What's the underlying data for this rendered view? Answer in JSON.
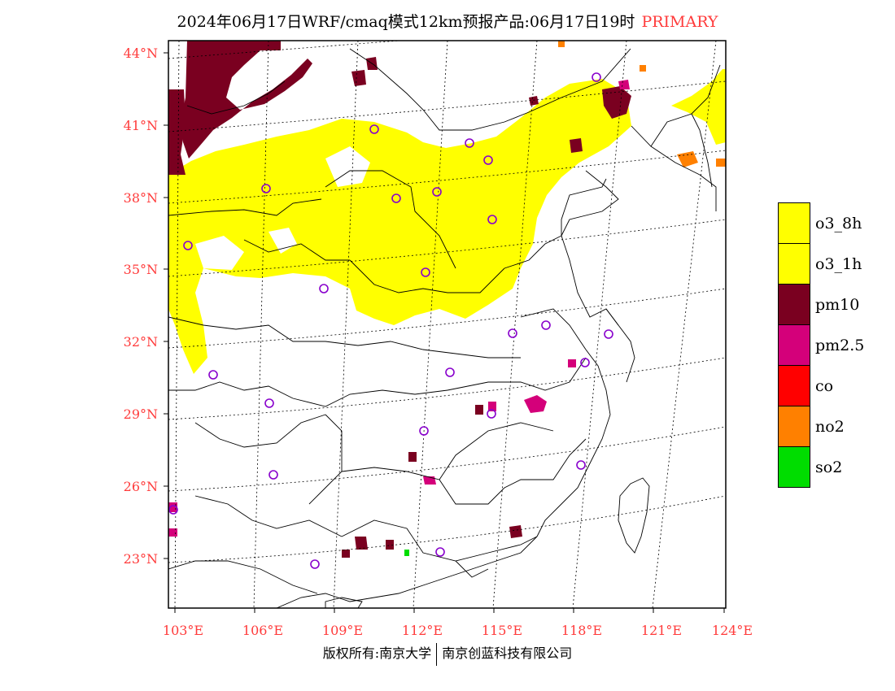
{
  "title": {
    "main": "2024年06月17日WRF/cmaq模式12km预报产品:06月17日19时",
    "tag": "PRIMARY"
  },
  "map": {
    "lat_labels": [
      "44°N",
      "41°N",
      "38°N",
      "35°N",
      "32°N",
      "29°N",
      "26°N",
      "23°N"
    ],
    "lon_labels": [
      "103°E",
      "106°E",
      "109°E",
      "112°E",
      "115°E",
      "118°E",
      "121°E",
      "124°E"
    ],
    "colors": {
      "o3": "#ffff00",
      "pm10": "#7a0020",
      "pm25": "#d4007a",
      "no2": "#ff8000",
      "so2": "#00dd00",
      "station": "#8800cc"
    }
  },
  "legend": [
    {
      "label": "o3_8h",
      "color": "#ffff00"
    },
    {
      "label": "o3_1h",
      "color": "#ffff00"
    },
    {
      "label": "pm10",
      "color": "#7a0020"
    },
    {
      "label": "pm2.5",
      "color": "#d4007a"
    },
    {
      "label": "co",
      "color": "#ff0000"
    },
    {
      "label": "no2",
      "color": "#ff8000"
    },
    {
      "label": "so2",
      "color": "#00dd00"
    }
  ],
  "footer": {
    "left": "版权所有:南京大学",
    "right": "南京创蓝科技有限公司"
  }
}
